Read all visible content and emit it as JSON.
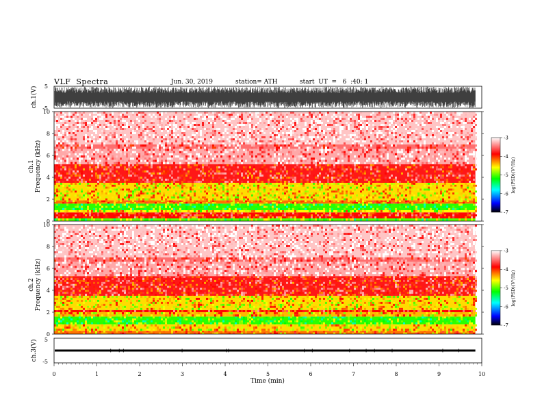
{
  "header": {
    "title": "VLF  Spectra",
    "date": "Jun. 30, 2019",
    "station": "station= ATH",
    "start": "start  UT  =   6  :40: 1"
  },
  "chart_data": [
    {
      "type": "line",
      "name": "ch1-waveform",
      "ylabel": "ch.1(V)",
      "ylim": [
        -5,
        5
      ],
      "yticks": [
        "5",
        "-5"
      ],
      "xlim": [
        0,
        10
      ],
      "envelope_v": [
        -4.8,
        4.8
      ]
    },
    {
      "type": "heatmap",
      "name": "ch1-spectrogram",
      "ylabel": "ch.1\nFrequency  (kHz)",
      "ylim": [
        0,
        10
      ],
      "yticks": [
        "0",
        "2",
        "4",
        "6",
        "8",
        "10"
      ],
      "xlim": [
        0,
        9.85
      ],
      "colorbar": {
        "label": "log(PSD)(V²/Hz)",
        "range": [
          -7,
          -3
        ],
        "ticks": [
          "-3",
          "-4",
          "-5",
          "-6",
          "-7"
        ]
      },
      "bands_khz": [
        {
          "f0": 0.0,
          "f1": 0.25,
          "logpsd": -5.0
        },
        {
          "f0": 0.25,
          "f1": 0.8,
          "logpsd": -3.9
        },
        {
          "f0": 0.8,
          "f1": 1.0,
          "logpsd": -4.6
        },
        {
          "f0": 1.0,
          "f1": 1.6,
          "logpsd": -5.1
        },
        {
          "f0": 1.6,
          "f1": 1.9,
          "logpsd": -4.2
        },
        {
          "f0": 1.9,
          "f1": 3.5,
          "logpsd": -4.5
        },
        {
          "f0": 3.5,
          "f1": 5.2,
          "logpsd": -3.8
        },
        {
          "f0": 5.2,
          "f1": 6.6,
          "logpsd": -3.3
        },
        {
          "f0": 6.6,
          "f1": 7.0,
          "logpsd": -3.5
        },
        {
          "f0": 7.0,
          "f1": 10.0,
          "logpsd": -3.2
        }
      ]
    },
    {
      "type": "heatmap",
      "name": "ch2-spectrogram",
      "ylabel": "ch.2\nFrequency  (kHz)",
      "ylim": [
        0,
        10
      ],
      "yticks": [
        "0",
        "2",
        "4",
        "6",
        "8",
        "10"
      ],
      "xlim": [
        0,
        9.85
      ],
      "colorbar": {
        "label": "log(PSD)(V²/Hz)",
        "range": [
          -7,
          -3
        ],
        "ticks": [
          "-3",
          "-4",
          "-5",
          "-6",
          "-7"
        ]
      },
      "bands_khz": [
        {
          "f0": 0.0,
          "f1": 0.3,
          "logpsd": -4.2
        },
        {
          "f0": 0.3,
          "f1": 0.9,
          "logpsd": -4.5
        },
        {
          "f0": 0.9,
          "f1": 1.6,
          "logpsd": -5.1
        },
        {
          "f0": 1.6,
          "f1": 2.0,
          "logpsd": -4.4
        },
        {
          "f0": 2.0,
          "f1": 2.2,
          "logpsd": -3.9
        },
        {
          "f0": 2.2,
          "f1": 3.5,
          "logpsd": -4.5
        },
        {
          "f0": 3.5,
          "f1": 5.3,
          "logpsd": -3.8
        },
        {
          "f0": 5.3,
          "f1": 6.6,
          "logpsd": -3.3
        },
        {
          "f0": 6.6,
          "f1": 7.0,
          "logpsd": -3.5
        },
        {
          "f0": 7.0,
          "f1": 10.0,
          "logpsd": -3.2
        }
      ]
    },
    {
      "type": "line",
      "name": "ch3-waveform",
      "ylabel": "ch.3(V)",
      "ylim": [
        -5,
        5
      ],
      "yticks": [
        "5",
        "-5"
      ],
      "xlim": [
        0,
        10
      ],
      "baseline_v": 0
    }
  ],
  "xaxis": {
    "label": "Time  (min)",
    "ticks": [
      "0",
      "1",
      "2",
      "3",
      "4",
      "5",
      "6",
      "7",
      "8",
      "9",
      "10"
    ]
  },
  "colors": {
    "psd_ramp": [
      "#000000",
      "#0000ff",
      "#00ffff",
      "#00ff00",
      "#ffff00",
      "#ff0000",
      "#ffffff"
    ]
  }
}
